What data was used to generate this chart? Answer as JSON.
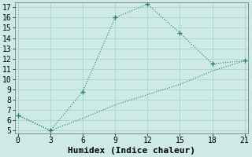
{
  "xlabel": "Humidex (Indice chaleur)",
  "ylabel": "",
  "line1_x": [
    0,
    3,
    6,
    9,
    12,
    15,
    18,
    21
  ],
  "line1_y": [
    6.5,
    5.0,
    8.8,
    16.0,
    17.3,
    14.5,
    11.5,
    11.8
  ],
  "line2_x": [
    0,
    3,
    6,
    9,
    12,
    15,
    18,
    21
  ],
  "line2_y": [
    6.5,
    5.0,
    6.2,
    7.5,
    8.5,
    9.5,
    10.8,
    11.8
  ],
  "line_color": "#2a7d70",
  "bg_color": "#ceeae5",
  "grid_color": "#aad4ce",
  "xlim": [
    0,
    21
  ],
  "ylim": [
    5,
    17
  ],
  "xticks": [
    0,
    3,
    6,
    9,
    12,
    15,
    18,
    21
  ],
  "yticks": [
    5,
    6,
    7,
    8,
    9,
    10,
    11,
    12,
    13,
    14,
    15,
    16,
    17
  ],
  "fontname": "monospace",
  "fontsize_label": 8,
  "fontsize_tick": 7
}
